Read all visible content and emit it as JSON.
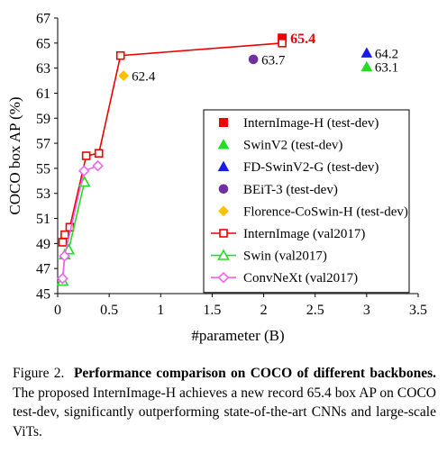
{
  "chart_data": {
    "type": "scatter",
    "xlabel": "#parameter (B)",
    "ylabel": "COCO box AP (%)",
    "xlim": [
      0,
      3.5
    ],
    "ylim": [
      45,
      67
    ],
    "xticks": [
      "0",
      "0.5",
      "1",
      "1.5",
      "2",
      "2.5",
      "3",
      "3.5"
    ],
    "yticks": [
      "45",
      "47",
      "49",
      "51",
      "53",
      "55",
      "57",
      "59",
      "61",
      "63",
      "65",
      "67"
    ],
    "legend_position": "center-right",
    "series": [
      {
        "name": "InternImage-H (test-dev)",
        "marker": "square-filled",
        "color": "#ee0000",
        "points": [
          [
            2.18,
            65.4
          ]
        ],
        "labels": [
          "65.4"
        ]
      },
      {
        "name": "SwinV2 (test-dev)",
        "marker": "triangle-filled",
        "color": "#22dd22",
        "points": [
          [
            3.0,
            63.1
          ]
        ],
        "labels": [
          "63.1"
        ]
      },
      {
        "name": "FD-SwinV2-G (test-dev)",
        "marker": "triangle-filled",
        "color": "#1a1aee",
        "points": [
          [
            3.0,
            64.2
          ]
        ],
        "labels": [
          "64.2"
        ]
      },
      {
        "name": "BEiT-3 (test-dev)",
        "marker": "circle-filled",
        "color": "#7030a0",
        "points": [
          [
            1.9,
            63.7
          ]
        ],
        "labels": [
          "63.7"
        ]
      },
      {
        "name": "Florence-CoSwin-H (test-dev)",
        "marker": "diamond-filled",
        "color": "#ffc000",
        "points": [
          [
            0.64,
            62.4
          ]
        ],
        "labels": [
          "62.4"
        ]
      },
      {
        "name": "InternImage (val2017)",
        "marker": "square-open",
        "color": "#ee0000",
        "line": true,
        "points": [
          [
            0.049,
            49.1
          ],
          [
            0.069,
            49.7
          ],
          [
            0.118,
            50.3
          ],
          [
            0.277,
            56.0
          ],
          [
            0.4,
            56.2
          ],
          [
            0.61,
            64.0
          ],
          [
            2.18,
            65.0
          ]
        ]
      },
      {
        "name": "Swin (val2017)",
        "marker": "triangle-open",
        "color": "#22dd22",
        "line": true,
        "points": [
          [
            0.048,
            46.0
          ],
          [
            0.069,
            48.1
          ],
          [
            0.107,
            48.5
          ],
          [
            0.26,
            53.9
          ]
        ]
      },
      {
        "name": "ConvNeXt (val2017)",
        "marker": "diamond-open",
        "color": "#ee66ee",
        "line": true,
        "points": [
          [
            0.048,
            46.2
          ],
          [
            0.067,
            48.0
          ],
          [
            0.256,
            54.8
          ],
          [
            0.39,
            55.2
          ]
        ]
      }
    ]
  },
  "caption": {
    "prefix": "Figure 2.",
    "bold": "Performance comparison on COCO of different backbones.",
    "body": "The proposed InternImage-H achieves a new record 65.4 box AP on COCO test-dev, significantly outperforming state-of-the-art CNNs and large-scale ViTs."
  }
}
